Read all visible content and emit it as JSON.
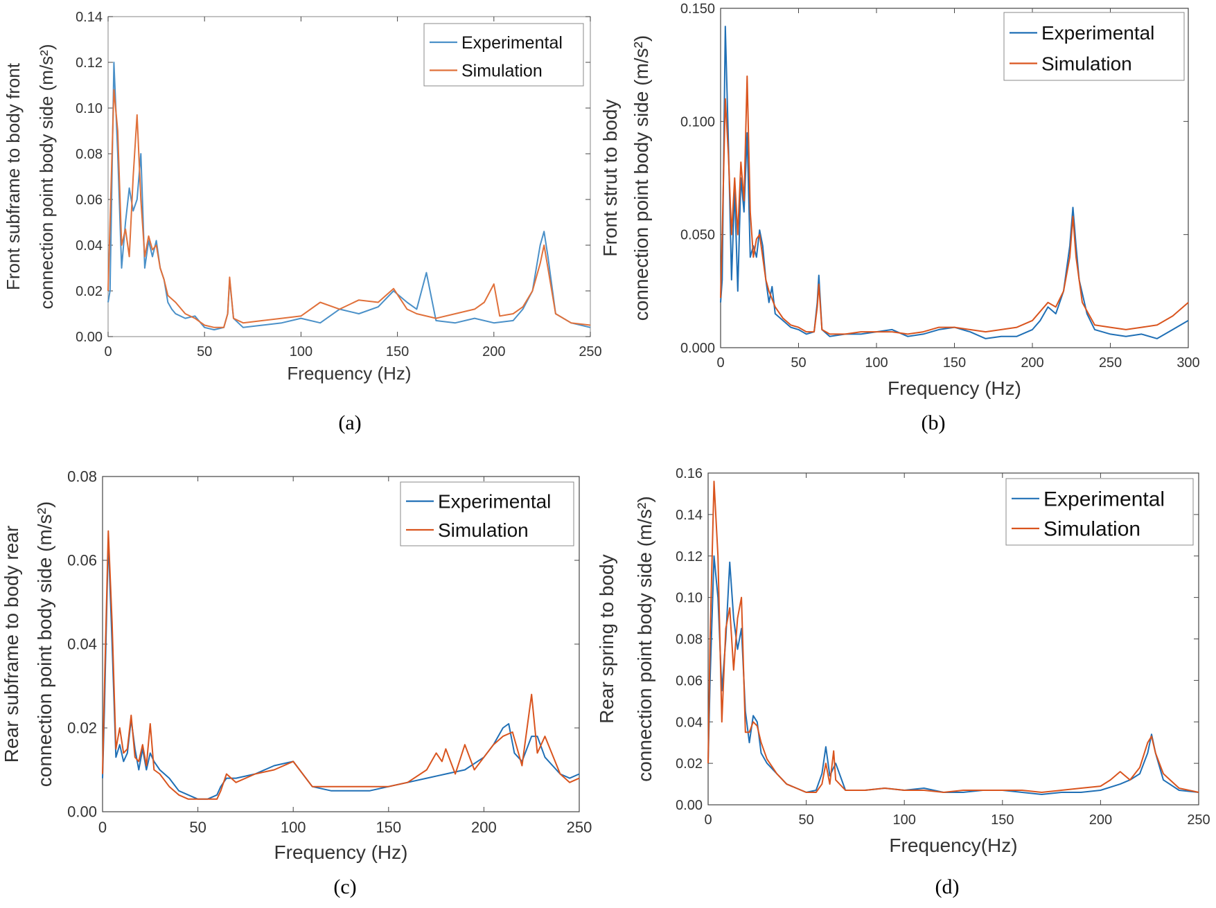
{
  "chart_data": [
    {
      "type": "line",
      "caption": "(a)",
      "xlabel": "Frequency (Hz)",
      "ylabel_line1": "Front subframe to body front",
      "ylabel_line2": "connection point body side (m/s²)",
      "xlim": [
        0,
        250
      ],
      "ylim": [
        0,
        0.14
      ],
      "xticks": [
        "0",
        "50",
        "100",
        "150",
        "200",
        "250"
      ],
      "yticks": [
        "0.00",
        "0.02",
        "0.04",
        "0.06",
        "0.08",
        "0.10",
        "0.12",
        "0.14"
      ],
      "legend": "top-right",
      "series": [
        {
          "name": "Experimental",
          "color": "#4a90c8",
          "x": [
            0,
            1,
            3,
            5,
            7,
            9,
            11,
            13,
            15,
            17,
            19,
            21,
            23,
            25,
            27,
            29,
            31,
            33,
            35,
            40,
            45,
            50,
            55,
            60,
            62,
            63,
            65,
            70,
            80,
            90,
            100,
            110,
            120,
            130,
            140,
            148,
            155,
            160,
            165,
            170,
            180,
            190,
            200,
            210,
            215,
            220,
            224,
            226,
            228,
            232,
            240,
            250
          ],
          "y": [
            0.015,
            0.02,
            0.12,
            0.08,
            0.03,
            0.05,
            0.065,
            0.055,
            0.06,
            0.08,
            0.03,
            0.042,
            0.035,
            0.042,
            0.03,
            0.025,
            0.015,
            0.012,
            0.01,
            0.008,
            0.009,
            0.004,
            0.003,
            0.004,
            0.01,
            0.025,
            0.008,
            0.004,
            0.005,
            0.006,
            0.008,
            0.006,
            0.012,
            0.01,
            0.013,
            0.02,
            0.015,
            0.012,
            0.028,
            0.007,
            0.006,
            0.008,
            0.006,
            0.007,
            0.012,
            0.02,
            0.04,
            0.046,
            0.035,
            0.01,
            0.006,
            0.004
          ]
        },
        {
          "name": "Simulation",
          "color": "#e0703a",
          "x": [
            0,
            1,
            3,
            5,
            7,
            9,
            11,
            13,
            15,
            17,
            19,
            21,
            23,
            25,
            27,
            29,
            31,
            35,
            40,
            45,
            50,
            55,
            60,
            62,
            63,
            65,
            70,
            80,
            90,
            100,
            110,
            120,
            130,
            140,
            148,
            155,
            160,
            170,
            180,
            190,
            195,
            200,
            203,
            210,
            215,
            220,
            224,
            226,
            228,
            232,
            240,
            250
          ],
          "y": [
            0.02,
            0.05,
            0.108,
            0.09,
            0.04,
            0.047,
            0.035,
            0.07,
            0.097,
            0.06,
            0.035,
            0.044,
            0.038,
            0.04,
            0.03,
            0.025,
            0.018,
            0.015,
            0.01,
            0.008,
            0.005,
            0.004,
            0.004,
            0.01,
            0.026,
            0.008,
            0.006,
            0.007,
            0.008,
            0.009,
            0.015,
            0.012,
            0.016,
            0.015,
            0.021,
            0.012,
            0.01,
            0.008,
            0.01,
            0.012,
            0.015,
            0.023,
            0.009,
            0.01,
            0.013,
            0.02,
            0.032,
            0.04,
            0.03,
            0.01,
            0.006,
            0.005
          ]
        }
      ]
    },
    {
      "type": "line",
      "caption": "(b)",
      "xlabel": "Frequency (Hz)",
      "ylabel_line1": "Front strut to body",
      "ylabel_line2": "connection point body side (m/s²)",
      "xlim": [
        0,
        300
      ],
      "ylim": [
        0,
        0.15
      ],
      "xticks": [
        "0",
        "50",
        "100",
        "150",
        "200",
        "250",
        "300"
      ],
      "yticks": [
        "0.000",
        "0.050",
        "0.100",
        "0.150"
      ],
      "legend": "top-right",
      "series": [
        {
          "name": "Experimental",
          "color": "#1f6fb5",
          "x": [
            0,
            1,
            3,
            5,
            7,
            9,
            11,
            13,
            15,
            17,
            19,
            21,
            23,
            25,
            27,
            29,
            31,
            33,
            35,
            40,
            45,
            50,
            55,
            60,
            62,
            63,
            65,
            70,
            80,
            90,
            100,
            110,
            120,
            130,
            140,
            150,
            160,
            170,
            180,
            190,
            200,
            205,
            210,
            215,
            220,
            224,
            226,
            228,
            230,
            235,
            240,
            250,
            260,
            270,
            280,
            290,
            300
          ],
          "y": [
            0.02,
            0.03,
            0.142,
            0.09,
            0.03,
            0.07,
            0.025,
            0.075,
            0.06,
            0.095,
            0.04,
            0.045,
            0.04,
            0.052,
            0.045,
            0.03,
            0.02,
            0.027,
            0.015,
            0.012,
            0.009,
            0.008,
            0.006,
            0.007,
            0.02,
            0.032,
            0.008,
            0.005,
            0.006,
            0.006,
            0.007,
            0.008,
            0.005,
            0.006,
            0.008,
            0.009,
            0.007,
            0.004,
            0.005,
            0.005,
            0.008,
            0.012,
            0.018,
            0.015,
            0.025,
            0.045,
            0.062,
            0.045,
            0.03,
            0.015,
            0.008,
            0.006,
            0.005,
            0.006,
            0.004,
            0.008,
            0.012
          ]
        },
        {
          "name": "Simulation",
          "color": "#d9541e",
          "x": [
            0,
            1,
            3,
            5,
            7,
            9,
            11,
            13,
            15,
            17,
            19,
            21,
            23,
            25,
            27,
            29,
            31,
            35,
            40,
            45,
            50,
            55,
            60,
            62,
            63,
            65,
            70,
            80,
            90,
            100,
            110,
            120,
            130,
            140,
            150,
            160,
            170,
            180,
            190,
            200,
            205,
            210,
            215,
            220,
            224,
            226,
            228,
            232,
            240,
            250,
            260,
            270,
            280,
            290,
            300
          ],
          "y": [
            0.022,
            0.05,
            0.11,
            0.085,
            0.05,
            0.075,
            0.05,
            0.082,
            0.065,
            0.12,
            0.06,
            0.04,
            0.048,
            0.05,
            0.04,
            0.03,
            0.025,
            0.018,
            0.013,
            0.01,
            0.009,
            0.007,
            0.007,
            0.018,
            0.028,
            0.008,
            0.006,
            0.006,
            0.007,
            0.007,
            0.007,
            0.006,
            0.007,
            0.009,
            0.009,
            0.008,
            0.007,
            0.008,
            0.009,
            0.012,
            0.016,
            0.02,
            0.018,
            0.025,
            0.04,
            0.058,
            0.04,
            0.02,
            0.01,
            0.009,
            0.008,
            0.009,
            0.01,
            0.014,
            0.02
          ]
        }
      ]
    },
    {
      "type": "line",
      "caption": "(c)",
      "xlabel": "Frequency (Hz)",
      "ylabel_line1": "Rear subframe to body rear",
      "ylabel_line2": "connection point body side (m/s²)",
      "xlim": [
        0,
        250
      ],
      "ylim": [
        0,
        0.08
      ],
      "xticks": [
        "0",
        "50",
        "100",
        "150",
        "200",
        "250"
      ],
      "yticks": [
        "0.00",
        "0.02",
        "0.04",
        "0.06",
        "0.08"
      ],
      "legend": "top-right",
      "series": [
        {
          "name": "Experimental",
          "color": "#1f6fb5",
          "x": [
            0,
            1,
            3,
            5,
            7,
            9,
            11,
            13,
            15,
            17,
            19,
            21,
            23,
            25,
            27,
            30,
            35,
            40,
            45,
            50,
            55,
            60,
            62,
            65,
            70,
            80,
            90,
            100,
            110,
            120,
            130,
            140,
            150,
            160,
            170,
            180,
            190,
            200,
            205,
            210,
            213,
            216,
            220,
            225,
            228,
            232,
            240,
            245,
            250
          ],
          "y": [
            0.008,
            0.025,
            0.065,
            0.04,
            0.013,
            0.016,
            0.012,
            0.014,
            0.022,
            0.015,
            0.01,
            0.015,
            0.01,
            0.014,
            0.012,
            0.01,
            0.008,
            0.005,
            0.004,
            0.003,
            0.003,
            0.004,
            0.006,
            0.008,
            0.008,
            0.009,
            0.011,
            0.012,
            0.006,
            0.005,
            0.005,
            0.005,
            0.006,
            0.007,
            0.008,
            0.009,
            0.01,
            0.013,
            0.016,
            0.02,
            0.021,
            0.014,
            0.012,
            0.018,
            0.018,
            0.013,
            0.009,
            0.008,
            0.009
          ]
        },
        {
          "name": "Simulation",
          "color": "#d9541e",
          "x": [
            0,
            1,
            3,
            5,
            7,
            9,
            11,
            13,
            15,
            17,
            19,
            21,
            23,
            25,
            27,
            30,
            35,
            40,
            45,
            50,
            55,
            60,
            62,
            65,
            70,
            80,
            90,
            100,
            110,
            120,
            130,
            140,
            150,
            160,
            170,
            175,
            178,
            180,
            185,
            190,
            195,
            200,
            205,
            210,
            215,
            220,
            225,
            228,
            232,
            240,
            245,
            250
          ],
          "y": [
            0.009,
            0.03,
            0.067,
            0.045,
            0.015,
            0.02,
            0.014,
            0.015,
            0.023,
            0.013,
            0.012,
            0.016,
            0.011,
            0.021,
            0.01,
            0.009,
            0.006,
            0.004,
            0.003,
            0.003,
            0.003,
            0.003,
            0.005,
            0.009,
            0.007,
            0.009,
            0.01,
            0.012,
            0.006,
            0.006,
            0.006,
            0.006,
            0.006,
            0.007,
            0.01,
            0.014,
            0.012,
            0.015,
            0.009,
            0.016,
            0.01,
            0.013,
            0.016,
            0.018,
            0.019,
            0.011,
            0.028,
            0.014,
            0.018,
            0.009,
            0.007,
            0.008
          ]
        }
      ]
    },
    {
      "type": "line",
      "caption": "(d)",
      "xlabel": "Frequency(Hz)",
      "ylabel_line1": "Rear spring to body",
      "ylabel_line2": "connection point body side (m/s²)",
      "xlim": [
        0,
        250
      ],
      "ylim": [
        0,
        0.16
      ],
      "xticks": [
        "0",
        "50",
        "100",
        "150",
        "200",
        "250"
      ],
      "yticks": [
        "0.00",
        "0.02",
        "0.04",
        "0.06",
        "0.08",
        "0.10",
        "0.12",
        "0.14",
        "0.16"
      ],
      "legend": "top-right",
      "series": [
        {
          "name": "Experimental",
          "color": "#1f6fb5",
          "x": [
            0,
            1,
            3,
            5,
            7,
            9,
            11,
            13,
            15,
            17,
            19,
            21,
            23,
            25,
            27,
            30,
            35,
            40,
            45,
            50,
            55,
            58,
            60,
            62,
            65,
            70,
            80,
            90,
            100,
            110,
            120,
            130,
            140,
            150,
            160,
            170,
            180,
            190,
            200,
            210,
            215,
            220,
            224,
            226,
            228,
            232,
            240,
            250
          ],
          "y": [
            0.02,
            0.06,
            0.12,
            0.1,
            0.055,
            0.08,
            0.117,
            0.09,
            0.075,
            0.085,
            0.045,
            0.03,
            0.043,
            0.04,
            0.025,
            0.02,
            0.015,
            0.01,
            0.008,
            0.006,
            0.007,
            0.015,
            0.028,
            0.014,
            0.02,
            0.007,
            0.007,
            0.008,
            0.007,
            0.008,
            0.006,
            0.006,
            0.007,
            0.007,
            0.006,
            0.005,
            0.006,
            0.006,
            0.007,
            0.01,
            0.012,
            0.015,
            0.025,
            0.034,
            0.025,
            0.012,
            0.007,
            0.006
          ]
        },
        {
          "name": "Simulation",
          "color": "#d9541e",
          "x": [
            0,
            1,
            3,
            5,
            7,
            9,
            11,
            13,
            15,
            17,
            19,
            21,
            23,
            25,
            27,
            30,
            35,
            40,
            45,
            50,
            55,
            58,
            60,
            62,
            64,
            65,
            70,
            80,
            90,
            100,
            110,
            120,
            130,
            140,
            150,
            160,
            170,
            180,
            190,
            200,
            205,
            210,
            215,
            220,
            224,
            226,
            228,
            232,
            240,
            250
          ],
          "y": [
            0.02,
            0.08,
            0.156,
            0.12,
            0.04,
            0.085,
            0.095,
            0.065,
            0.09,
            0.1,
            0.035,
            0.035,
            0.04,
            0.038,
            0.03,
            0.022,
            0.015,
            0.01,
            0.008,
            0.006,
            0.006,
            0.01,
            0.02,
            0.01,
            0.026,
            0.012,
            0.007,
            0.007,
            0.008,
            0.007,
            0.007,
            0.006,
            0.007,
            0.007,
            0.007,
            0.007,
            0.006,
            0.007,
            0.008,
            0.009,
            0.012,
            0.016,
            0.012,
            0.018,
            0.03,
            0.033,
            0.025,
            0.015,
            0.008,
            0.006
          ]
        }
      ]
    }
  ]
}
